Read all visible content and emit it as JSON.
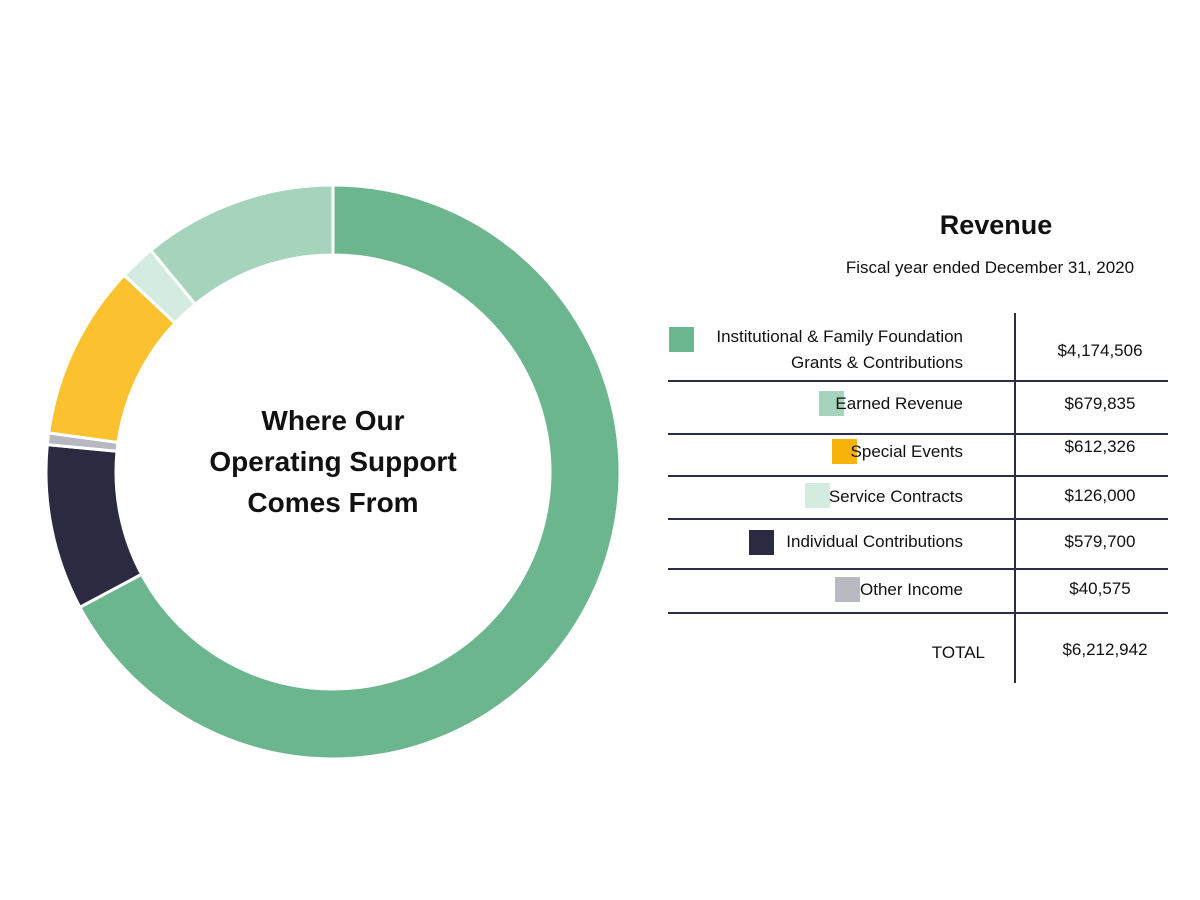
{
  "chart_data": {
    "type": "pie",
    "title": "Where Our Operating Support Comes From",
    "center_label_lines": [
      "Where Our",
      "Operating Support",
      "Comes From"
    ],
    "categories": [
      "Institutional & Family Foundation Grants & Contributions",
      "Individual Contributions",
      "Other Income",
      "Special Events",
      "Service Contracts",
      "Earned Revenue"
    ],
    "values": [
      4174506,
      579700,
      40575,
      612326,
      126000,
      679835
    ],
    "colors": [
      "#6bb58f",
      "#2a2a41",
      "#b7b7c0",
      "#fbc12f",
      "#d4ece0",
      "#a5d3bc"
    ],
    "start_angle_deg": 0,
    "direction": "clockwise",
    "donut": true
  },
  "panel": {
    "title": "Revenue",
    "subtitle": "Fiscal year ended December 31, 2020",
    "rows": [
      {
        "label_lines": [
          "Institutional & Family Foundation",
          "Grants & Contributions"
        ],
        "value": "$4,174,506",
        "color": "#6bb58f"
      },
      {
        "label_lines": [
          "Earned Revenue"
        ],
        "value": "$679,835",
        "color": "#a5d3bc"
      },
      {
        "label_lines": [
          "Special Events"
        ],
        "value": "$612,326",
        "color": "#f7b30a"
      },
      {
        "label_lines": [
          "Service Contracts"
        ],
        "value": "$126,000",
        "color": "#d4ece0"
      },
      {
        "label_lines": [
          "Individual Contributions"
        ],
        "value": "$579,700",
        "color": "#2a2a41"
      },
      {
        "label_lines": [
          "Other Income"
        ],
        "value": "$40,575",
        "color": "#b9b9c2"
      }
    ],
    "total_label": "TOTAL",
    "total_value": "$6,212,942"
  }
}
